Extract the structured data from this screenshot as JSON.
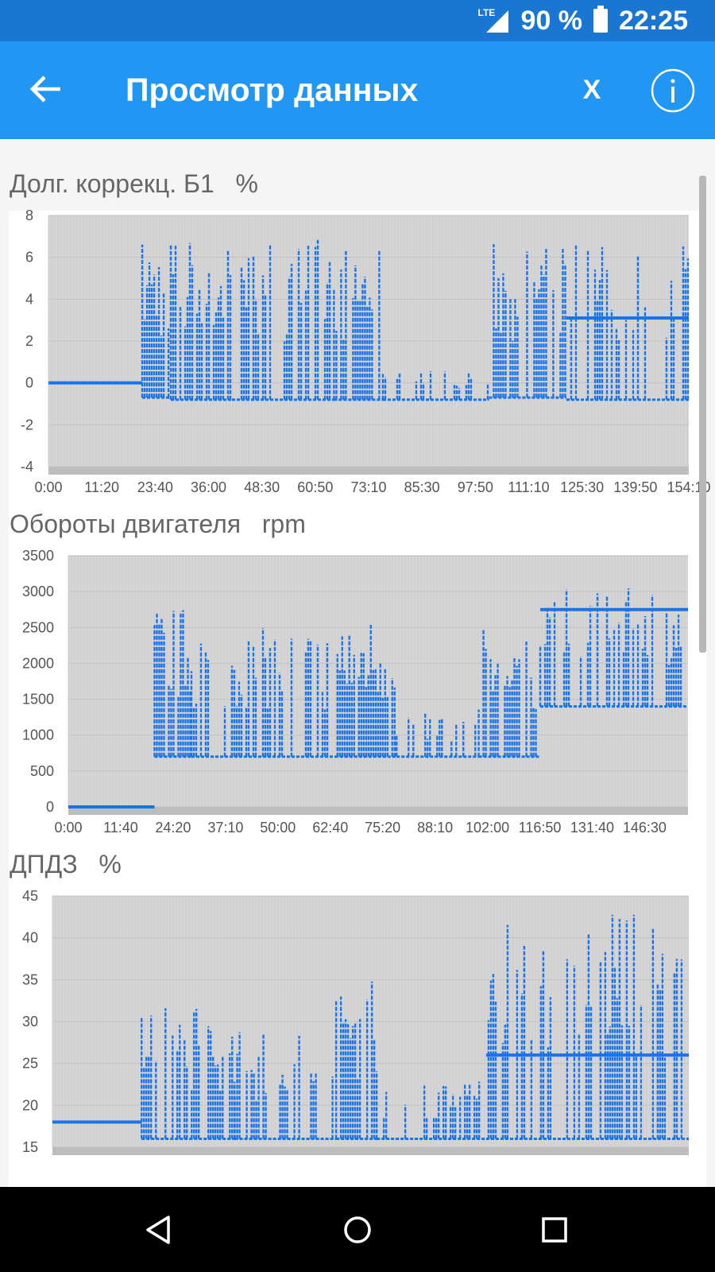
{
  "status_bar": {
    "network": "LTE",
    "battery_text": "90 %",
    "time": "22:25",
    "icons": [
      "signal-icon",
      "battery-icon"
    ]
  },
  "app_bar": {
    "title": "Просмотр данных",
    "back_icon": "arrow-left-icon",
    "close_label": "X",
    "info_icon": "info-icon"
  },
  "charts": [
    {
      "title": "Долг. коррекц. Б1",
      "unit": "%"
    },
    {
      "title": "Обороты двигателя",
      "unit": "rpm"
    },
    {
      "title": "ДПДЗ",
      "unit": "%"
    }
  ],
  "chart_data": [
    {
      "type": "line",
      "title": "Долг. коррекц. Б1 %",
      "color": "#1a73e8",
      "ylim": [
        -4,
        8
      ],
      "y_ticks": [
        "8",
        "6",
        "4",
        "2",
        "0",
        "-2",
        "-4"
      ],
      "x_ticks": [
        "0:00",
        "11:20",
        "23:40",
        "36:00",
        "48:30",
        "60:50",
        "73:10",
        "85:30",
        "97:50",
        "111:10",
        "125:30",
        "139:50",
        "154:10"
      ],
      "x_range_minutes": [
        0,
        157
      ],
      "grid": true,
      "segments": [
        {
          "x_start_min": 0,
          "x_end_min": 23,
          "low": 0,
          "high": 0,
          "density": 0
        },
        {
          "x_start_min": 23,
          "x_end_min": 30,
          "low": -0.7,
          "high": 7,
          "density": 0.9
        },
        {
          "x_start_min": 30,
          "x_end_min": 45,
          "low": -0.8,
          "high": 7,
          "density": 0.75
        },
        {
          "x_start_min": 45,
          "x_end_min": 70,
          "low": -0.8,
          "high": 7,
          "density": 0.45
        },
        {
          "x_start_min": 70,
          "x_end_min": 82,
          "low": -0.8,
          "high": 7,
          "density": 0.9
        },
        {
          "x_start_min": 82,
          "x_end_min": 108,
          "low": -0.8,
          "high": 0.8,
          "density": 0.35
        },
        {
          "x_start_min": 108,
          "x_end_min": 127,
          "low": -0.7,
          "high": 7,
          "density": 0.75
        },
        {
          "x_start_min": 127,
          "x_end_min": 157,
          "low": -0.8,
          "high": 7,
          "baseline": 3.1,
          "density": 0.45
        }
      ]
    },
    {
      "type": "line",
      "title": "Обороты двигателя rpm",
      "color": "#1a73e8",
      "ylim": [
        0,
        3500
      ],
      "y_ticks": [
        "3500",
        "3000",
        "2500",
        "2000",
        "1500",
        "1000",
        "500",
        "0"
      ],
      "x_ticks": [
        "0:00",
        "11:40",
        "24:20",
        "37:10",
        "50:00",
        "62:40",
        "75:20",
        "88:10",
        "102:00",
        "116:50",
        "131:40",
        "146:30"
      ],
      "x_range_minutes": [
        0,
        151
      ],
      "grid": true,
      "segments": [
        {
          "x_start_min": 0,
          "x_end_min": 21,
          "low": 0,
          "high": 0,
          "density": 0
        },
        {
          "x_start_min": 21,
          "x_end_min": 30,
          "low": 700,
          "high": 2800,
          "density": 0.9
        },
        {
          "x_start_min": 30,
          "x_end_min": 65,
          "low": 700,
          "high": 2500,
          "density": 0.6
        },
        {
          "x_start_min": 65,
          "x_end_min": 80,
          "low": 700,
          "high": 2700,
          "density": 0.8
        },
        {
          "x_start_min": 80,
          "x_end_min": 100,
          "low": 700,
          "high": 1300,
          "density": 0.55
        },
        {
          "x_start_min": 100,
          "x_end_min": 115,
          "low": 700,
          "high": 2500,
          "density": 0.7
        },
        {
          "x_start_min": 115,
          "x_end_min": 151,
          "low": 1400,
          "high": 3050,
          "baseline": 2750,
          "density": 0.5
        }
      ]
    },
    {
      "type": "line",
      "title": "ДПДЗ %",
      "color": "#1a73e8",
      "ylim": [
        15,
        45
      ],
      "y_ticks": [
        "45",
        "40",
        "35",
        "30",
        "25",
        "20",
        "15"
      ],
      "x_ticks": [],
      "x_range_minutes": [
        0,
        157
      ],
      "grid": true,
      "segments": [
        {
          "x_start_min": 0,
          "x_end_min": 22,
          "low": 18,
          "high": 18,
          "density": 0
        },
        {
          "x_start_min": 22,
          "x_end_min": 45,
          "low": 16,
          "high": 32,
          "density": 0.7
        },
        {
          "x_start_min": 45,
          "x_end_min": 70,
          "low": 16,
          "high": 29,
          "density": 0.5
        },
        {
          "x_start_min": 70,
          "x_end_min": 80,
          "low": 16,
          "high": 36,
          "density": 0.8
        },
        {
          "x_start_min": 80,
          "x_end_min": 107,
          "low": 16,
          "high": 23,
          "density": 0.45
        },
        {
          "x_start_min": 107,
          "x_end_min": 157,
          "low": 16,
          "high": 43,
          "baseline": 26,
          "density": 0.6
        }
      ]
    }
  ],
  "nav_bar": {
    "icons": [
      "back-triangle-icon",
      "home-circle-icon",
      "recents-square-icon"
    ]
  }
}
